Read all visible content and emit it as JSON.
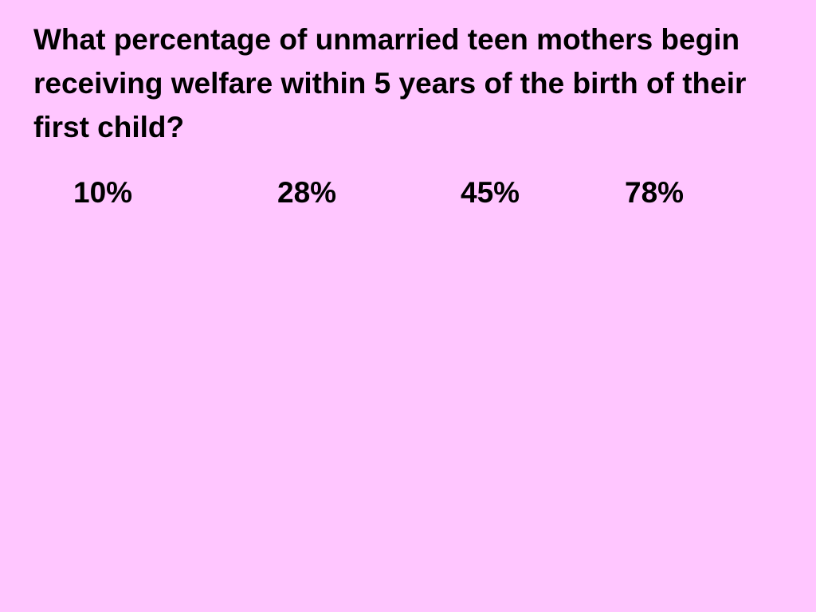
{
  "slide": {
    "question": "What percentage of unmarried teen mothers begin receiving welfare within 5 years of the birth of their first child?",
    "options": [
      "10%",
      "28%",
      "45%",
      "78%"
    ]
  }
}
